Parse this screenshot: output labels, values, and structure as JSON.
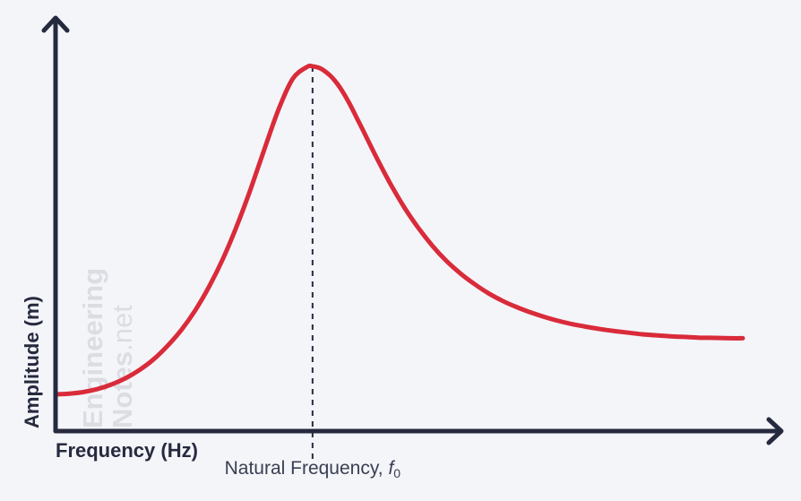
{
  "chart_data": {
    "type": "line",
    "title": "",
    "xlabel": "Frequency (Hz)",
    "ylabel": "Amplitude (m)",
    "grid": false,
    "legend": "none",
    "annotation": {
      "label_prefix": "Natural Frequency, ",
      "symbol": "f",
      "subscript": "0"
    },
    "watermark": {
      "line1": "Engineering",
      "line2_bold": "Notes",
      "line2_light": ".net"
    },
    "series": [
      {
        "color": "#d92b3a",
        "x": [
          0.0,
          0.05,
          0.1,
          0.15,
          0.2,
          0.25,
          0.3,
          0.35,
          0.4,
          0.45,
          0.5,
          0.55,
          0.6,
          0.65,
          0.7,
          0.75,
          0.8,
          0.85,
          0.9,
          0.92,
          0.95,
          0.98,
          1.0,
          1.02,
          1.05,
          1.08,
          1.1,
          1.15,
          1.2,
          1.25,
          1.3,
          1.35,
          1.4,
          1.45,
          1.5,
          1.55,
          1.6,
          1.65,
          1.7,
          1.75,
          1.8,
          1.85,
          1.9,
          1.95,
          2.0,
          2.05,
          2.1,
          2.15,
          2.2,
          2.25,
          2.3,
          2.36,
          2.42,
          2.46
        ],
        "y": [
          0.0,
          0.002,
          0.007,
          0.016,
          0.03,
          0.049,
          0.074,
          0.106,
          0.147,
          0.196,
          0.256,
          0.329,
          0.415,
          0.516,
          0.63,
          0.753,
          0.872,
          0.963,
          0.998,
          1.0,
          0.993,
          0.974,
          0.956,
          0.933,
          0.89,
          0.84,
          0.806,
          0.72,
          0.64,
          0.568,
          0.506,
          0.452,
          0.406,
          0.368,
          0.336,
          0.308,
          0.285,
          0.266,
          0.25,
          0.236,
          0.224,
          0.214,
          0.206,
          0.199,
          0.193,
          0.188,
          0.183,
          0.18,
          0.177,
          0.175,
          0.173,
          0.172,
          0.171,
          0.171
        ]
      }
    ],
    "natural_frequency_x": 0.92,
    "xlim": [
      0,
      2.46
    ],
    "ylim": [
      0,
      1.0
    ]
  },
  "colors": {
    "background": "#f4f5f9",
    "axis": "#262a3f",
    "curve": "#d92b3a",
    "annotation_text": "#3a3f52",
    "watermark": "#dcdde3"
  }
}
